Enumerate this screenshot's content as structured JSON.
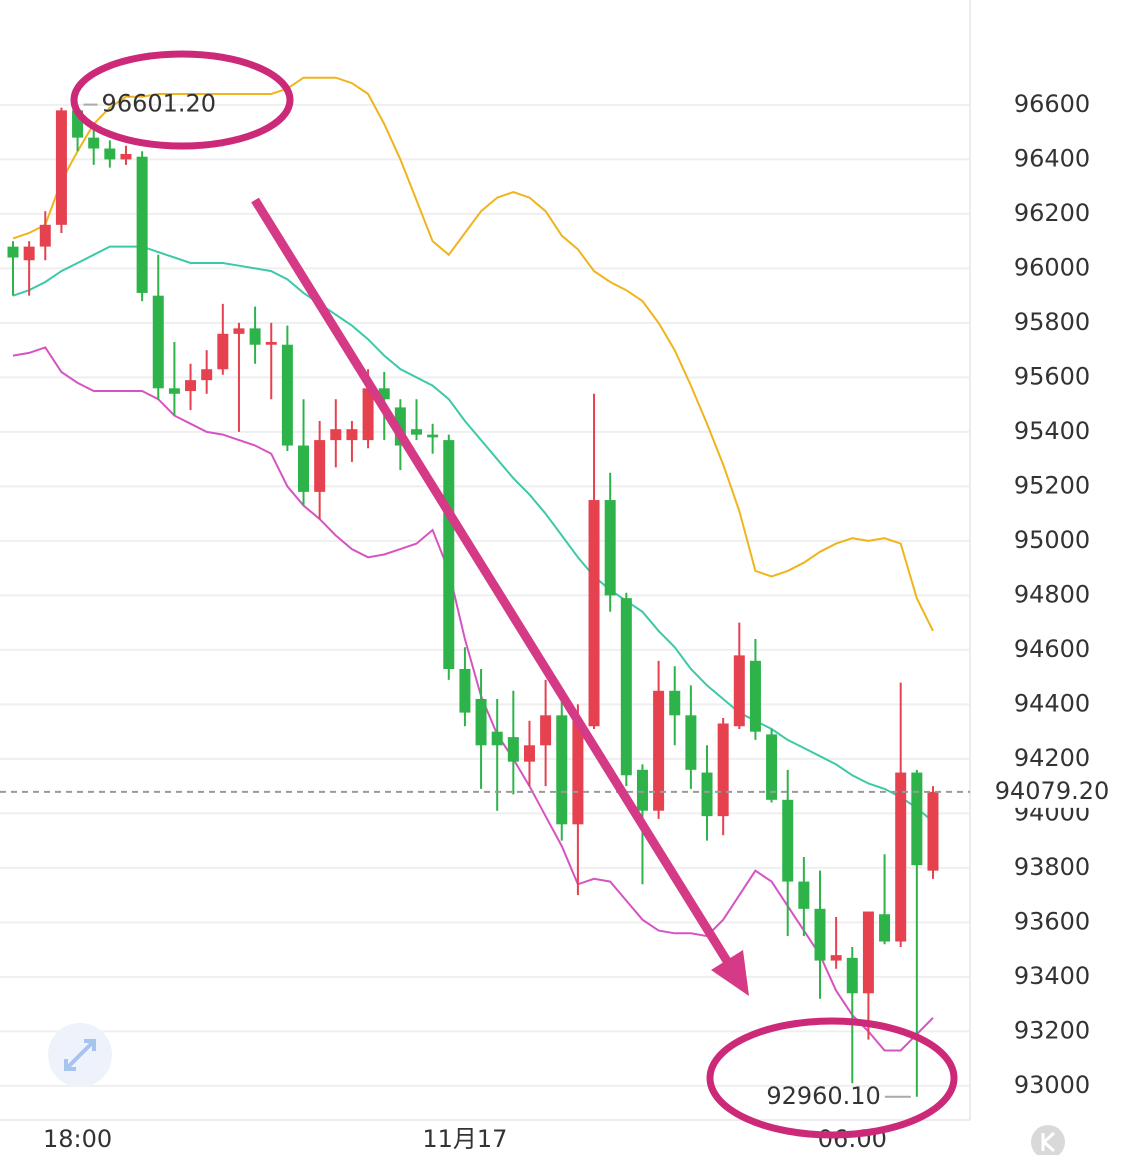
{
  "chart_data": {
    "type": "candlestick",
    "categories": [
      null,
      null,
      null,
      null,
      "18:00",
      null,
      null,
      null,
      null,
      null,
      null,
      null,
      null,
      null,
      null,
      null,
      null,
      null,
      null,
      null,
      null,
      null,
      null,
      null,
      null,
      null,
      null,
      null,
      "11月17",
      null,
      null,
      null,
      null,
      null,
      null,
      null,
      null,
      null,
      null,
      null,
      null,
      null,
      null,
      null,
      null,
      null,
      null,
      null,
      null,
      null,
      null,
      null,
      "06:00",
      null,
      null,
      null,
      null,
      null
    ],
    "open": [
      96080,
      96030,
      96080,
      96160,
      96580,
      96480,
      96440,
      96400,
      96410,
      95900,
      95560,
      95550,
      95590,
      95630,
      95760,
      95780,
      95720,
      95720,
      95350,
      95180,
      95370,
      95370,
      95370,
      95560,
      95490,
      95410,
      95390,
      95370,
      94530,
      94420,
      94300,
      94280,
      94190,
      94250,
      94360,
      93960,
      94320,
      95150,
      94790,
      94160,
      94010,
      94450,
      94360,
      94150,
      93990,
      94320,
      94560,
      94290,
      94050,
      93750,
      93650,
      93460,
      93470,
      93340,
      93630,
      93530,
      94150,
      93790
    ],
    "high": [
      96100,
      96100,
      96210,
      96590,
      96601.2,
      96510,
      96470,
      96450,
      96430,
      96050,
      95730,
      95650,
      95700,
      95870,
      95800,
      95860,
      95800,
      95790,
      95520,
      95440,
      95520,
      95440,
      95630,
      95620,
      95520,
      95520,
      95430,
      95390,
      94610,
      94530,
      94420,
      94450,
      94340,
      94490,
      94450,
      94400,
      95540,
      95250,
      94810,
      94180,
      94560,
      94540,
      94470,
      94250,
      94350,
      94700,
      94640,
      94310,
      94160,
      93840,
      93790,
      93620,
      93510,
      93640,
      93850,
      94480,
      94160,
      94100
    ],
    "low": [
      95900,
      95900,
      96030,
      96130,
      96430,
      96380,
      96370,
      96380,
      95880,
      95520,
      95460,
      95480,
      95540,
      95610,
      95400,
      95650,
      95520,
      95330,
      95130,
      95080,
      95270,
      95290,
      95340,
      95370,
      95260,
      95370,
      95320,
      94490,
      94320,
      94090,
      94010,
      94070,
      94100,
      94100,
      93900,
      93700,
      94310,
      94740,
      94100,
      93740,
      93980,
      94250,
      94090,
      93900,
      93920,
      94310,
      94270,
      94040,
      93550,
      93550,
      93320,
      93430,
      93010,
      93170,
      93520,
      93510,
      92960.1,
      93760
    ],
    "close": [
      96040,
      96080,
      96160,
      96580,
      96480,
      96440,
      96400,
      96420,
      95910,
      95560,
      95540,
      95590,
      95630,
      95760,
      95780,
      95720,
      95730,
      95350,
      95180,
      95370,
      95410,
      95410,
      95560,
      95520,
      95350,
      95390,
      95380,
      94530,
      94370,
      94250,
      94250,
      94190,
      94250,
      94360,
      93960,
      94340,
      95150,
      94800,
      94140,
      94010,
      94450,
      94360,
      94160,
      93990,
      94330,
      94580,
      94300,
      94050,
      93750,
      93650,
      93460,
      93480,
      93340,
      93640,
      93530,
      94150,
      93810,
      94079.2
    ],
    "up_color": "#e5414f",
    "down_color": "#2db34a",
    "overlays": [
      {
        "color": "#f0b41c",
        "values": [
          96110,
          96130,
          96160,
          96320,
          96430,
          96530,
          96590,
          96630,
          96630,
          96640,
          96640,
          96640,
          96640,
          96640,
          96640,
          96640,
          96640,
          96660,
          96700,
          96700,
          96700,
          96680,
          96640,
          96530,
          96400,
          96250,
          96100,
          96050,
          96130,
          96210,
          96260,
          96280,
          96260,
          96210,
          96120,
          96070,
          95990,
          95950,
          95920,
          95880,
          95800,
          95700,
          95570,
          95430,
          95280,
          95110,
          94890,
          94870,
          94890,
          94920,
          94960,
          94990,
          95010,
          95000,
          95010,
          94990,
          94790,
          94670
        ]
      },
      {
        "color": "#3cc9a8",
        "values": [
          95900,
          95920,
          95950,
          95990,
          96020,
          96050,
          96080,
          96080,
          96080,
          96060,
          96040,
          96020,
          96020,
          96020,
          96010,
          96000,
          95990,
          95960,
          95910,
          95870,
          95830,
          95790,
          95740,
          95680,
          95630,
          95600,
          95570,
          95520,
          95440,
          95370,
          95300,
          95230,
          95170,
          95100,
          95020,
          94940,
          94870,
          94820,
          94780,
          94740,
          94670,
          94610,
          94530,
          94470,
          94420,
          94370,
          94340,
          94310,
          94270,
          94240,
          94210,
          94180,
          94140,
          94110,
          94090,
          94060,
          94020,
          93970
        ]
      },
      {
        "color": "#d654c2",
        "values": [
          95680,
          95690,
          95710,
          95620,
          95580,
          95550,
          95550,
          95550,
          95550,
          95520,
          95460,
          95430,
          95400,
          95390,
          95370,
          95350,
          95320,
          95200,
          95130,
          95080,
          95020,
          94970,
          94940,
          94950,
          94970,
          94990,
          95040,
          94890,
          94640,
          94430,
          94290,
          94200,
          94100,
          93990,
          93880,
          93740,
          93760,
          93750,
          93680,
          93610,
          93570,
          93560,
          93560,
          93550,
          93610,
          93700,
          93790,
          93750,
          93660,
          93570,
          93480,
          93350,
          93260,
          93200,
          93130,
          93130,
          93190,
          93250
        ]
      }
    ],
    "last_price": {
      "value": 94079.2,
      "label": "94079.20"
    },
    "high_label": {
      "value": 96601.2,
      "label": "96601.20"
    },
    "low_label": {
      "value": 92960.1,
      "label": "92960.10"
    },
    "ylim": [
      92875,
      96985
    ],
    "yticks": [
      93000,
      93200,
      93400,
      93600,
      93800,
      94000,
      94200,
      94400,
      94600,
      94800,
      95000,
      95200,
      95400,
      95600,
      95800,
      96000,
      96200,
      96400,
      96600
    ],
    "grid": true
  }
}
